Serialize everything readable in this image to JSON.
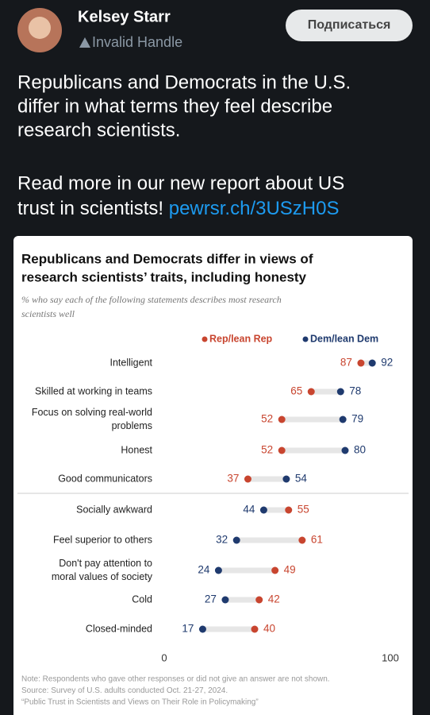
{
  "post": {
    "author": "Kelsey Starr",
    "handle": "Invalid Handle",
    "button": "Подписаться",
    "text_lines": [
      "Republicans and Democrats in the U.S.",
      "differ in what terms they feel describe",
      "research scientists."
    ],
    "read_more_lines": [
      "Read more in our new report about US",
      "trust in scientists!"
    ],
    "link": "pewrsr.ch/3USzH0S"
  },
  "chart_data": {
    "type": "dot",
    "title": [
      "Republicans and Democrats differ in views of",
      "research scientists’ traits, including honesty"
    ],
    "subtitle": [
      "% who say each of the following statements describes most research",
      "scientists well"
    ],
    "categories": [
      [
        "Intelligent"
      ],
      [
        "Skilled at working in teams"
      ],
      [
        "Focus on solving real-world",
        "problems"
      ],
      [
        "Honest"
      ],
      [
        "Good communicators"
      ],
      [
        "Socially awkward"
      ],
      [
        "Feel superior to others"
      ],
      [
        "Don't pay attention to",
        "moral values of society"
      ],
      [
        "Cold"
      ],
      [
        "Closed-minded"
      ]
    ],
    "series": [
      {
        "name": "Rep/lean Rep",
        "color": "#c8452f",
        "values": [
          87,
          65,
          52,
          52,
          37,
          55,
          61,
          49,
          42,
          40
        ]
      },
      {
        "name": "Dem/lean Dem",
        "color": "#1f3a6e",
        "values": [
          92,
          78,
          79,
          80,
          54,
          44,
          32,
          24,
          27,
          17
        ]
      }
    ],
    "xlim": [
      0,
      100
    ],
    "xticks": [
      0,
      100
    ],
    "notes": [
      "Note: Respondents who gave other responses or did not give an answer are not shown.",
      "Source: Survey of U.S. adults conducted Oct. 21-27, 2024.",
      "“Public Trust in Scientists and Views on Their Role in Policymaking”"
    ]
  }
}
